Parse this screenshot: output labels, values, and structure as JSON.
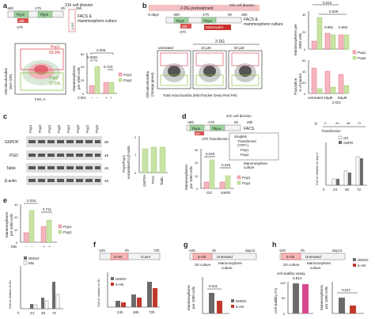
{
  "colors": {
    "pop1": "#e8899c",
    "pop2": "#8bc34a",
    "old": "#d9534f",
    "thym": "#7fb87f",
    "dmso": "#6b6b6b",
    "an6": "#c0392b",
    "pretreat": "#f4b6b6",
    "mito": "#c9302c"
  },
  "panel_a": {
    "letter": "a",
    "t46": "-46h",
    "t27": "-27h",
    "t17": "-17h",
    "t0": "0h",
    "t26": "26h",
    "thym": "Thym",
    "old": "old",
    "div": "21h cell division",
    "facs": "FACS &",
    "mammo": "mammosphere culture",
    "dg": "2-DG",
    "ylabel1": "Old mitochondria",
    "ylabel2": "(647-SIR)",
    "xlabel": "FSC-A",
    "pop1": "Pop1",
    "pop1_pct": "59.9%",
    "pop2": "Pop2",
    "pop2_pct": "17.6%",
    "bar_ylabel1": "Mammospheres",
    "bar_ylabel2": "per 1000 cells",
    "p1": "0.205",
    "p2": "0.0001",
    "p3": "0.723",
    "dg_row": "2-DG",
    "dg_vals": [
      "−",
      "−",
      "+",
      "+"
    ],
    "legend": [
      "Pop1",
      "Pop2"
    ],
    "yticks": [
      "0",
      "20",
      "40",
      "60"
    ]
  },
  "panel_b": {
    "letter": "b",
    "pretreat": "2-DG pretreatment",
    "t5d": "-5 days",
    "t46": "-46h",
    "t27": "-27h",
    "t17": "-17h",
    "t0": "0h",
    "t26": "26h",
    "thym": "Thym",
    "old": "old",
    "mito": "Mitotracker",
    "facs": "FACS &",
    "mammo": "mammosphere culture",
    "div": "21h cell division",
    "dg": "2-DG",
    "conds": [
      "untreated",
      "10 µM",
      "50 µM"
    ],
    "ylabel1": "Old mitochondria",
    "ylabel2": "(Omega green)",
    "xlabel": "Total mitochondria (MitoTracker Deep Red FM)",
    "p_top1": "0.012",
    "p_top2": "0.029",
    "p_a": "0.891",
    "p_b": "0.662",
    "ylab1": "Mammospheres per",
    "ylab2": "1000 cells",
    "ylab3": "Population",
    "ylab4": "% of parent",
    "legend": [
      "Pop1",
      "Pop2"
    ],
    "xcats": [
      "untreated",
      "10µM",
      "50µM"
    ],
    "xrow": "2-DG",
    "yticks_top": [
      "0",
      "20",
      "40"
    ],
    "yticks_bot": [
      "0",
      "20",
      "40",
      "60"
    ]
  },
  "panel_c": {
    "letter": "c",
    "lanes": [
      "Pop1",
      "Pop2",
      "Pop1",
      "Pop2",
      "Pop1",
      "Pop2",
      "Pop1",
      "Pop2"
    ],
    "rows": [
      "G6PDH",
      "PGD",
      "Taldo",
      "β-actin"
    ],
    "kda": [
      "58",
      "46",
      "46",
      "46"
    ],
    "ylabel1": "Pop2/Pop1",
    "ylabel2": "normalized to β-actin",
    "xcats": [
      "G6PDH",
      "PGD",
      "Taldo"
    ],
    "yticks": [
      "0",
      "1",
      "2"
    ]
  },
  "panel_d": {
    "letter": "d",
    "t46": "-46h",
    "t27": "-27h",
    "t17": "-17h",
    "t0": "0h",
    "t26": "26h",
    "thym": "Thym",
    "old": "old",
    "div": "21h cell division",
    "transfection": "-27h  Transfection",
    "facs": "FACS",
    "legend_box": [
      "Singlets",
      "Transfected",
      "(YFP+)",
      "Pop1",
      "Pop2"
    ],
    "mammo": "Mammosphere",
    "culture": "culture",
    "ylab1": "Mammospheres",
    "ylab2": "per 1000 cells",
    "p1": "0.020",
    "p2": "0.225",
    "xcats": [
      "Ctrl",
      "G6PD"
    ],
    "legend": [
      "Pop1",
      "Pop2"
    ],
    "yticks": [
      "0",
      "10",
      "20",
      "30"
    ]
  },
  "panel_dh": {
    "letter": "h",
    "t0": "0",
    "t24": "24",
    "t48": "48",
    "t72": "72",
    "transfection": "Transfection",
    "ylab1": "Cell nr relative to day 0",
    "legend": [
      "ctrl",
      "G6PD"
    ],
    "xcats": [
      "h",
      "24",
      "48",
      "72"
    ]
  },
  "panel_e": {
    "letter": "e",
    "ylab1": "Mammospheres",
    "ylab2": "per 1000 cells",
    "p1": "0.034",
    "p2": "0.711",
    "mtx": "Mtx",
    "mtx_vals": [
      "−",
      "−",
      "+",
      "+"
    ],
    "legend": [
      "Pop1",
      "Pop2"
    ],
    "legend2": [
      "DMSO",
      "Mtx"
    ],
    "ylab3": "Cell nr relative to 0h",
    "xcats": [
      "h",
      "24",
      "48",
      "72"
    ],
    "yticks": [
      "0",
      "10",
      "20",
      "30"
    ]
  },
  "panel_f": {
    "letter": "f",
    "t24": "-24h",
    "t0": "0h",
    "t72": "72h",
    "an": "6-AN",
    "count": "Count",
    "ylab": "Cell nr relative to 0h",
    "legend": [
      "DMSO",
      "6-AN"
    ],
    "xcats": [
      "24h",
      "48h",
      "72h"
    ]
  },
  "panel_g": {
    "letter": "g",
    "t24": "-24h",
    "t0": "0h",
    "t12": "day12",
    "an": "6-AN",
    "culture2d": "2D culture",
    "untreated": "Untreated",
    "mammo": "Mammosphere",
    "culture": "culture",
    "ylab1": "Mammospheres",
    "ylab2": "per 1000 cells",
    "p": "0.011",
    "legend": [
      "DMSO",
      "6-AN"
    ]
  },
  "panel_h": {
    "letter": "h",
    "t24": "-24h",
    "t0": "0h",
    "t14": "day14",
    "an": "6-AN",
    "culture2d": "2D culture",
    "untreated": "Untreated",
    "mammo": "Mammosphere",
    "culture": "culture",
    "viability": "cell viability assay",
    "ylab1": "Cell viability (%)",
    "ylab2": "Mammospheres",
    "ylab3": "per 1000 cells",
    "p1": "0.814",
    "p2": "0.017",
    "legend": [
      "DMSO",
      "6-AN"
    ],
    "yticks": [
      "0",
      "50",
      "100"
    ]
  }
}
